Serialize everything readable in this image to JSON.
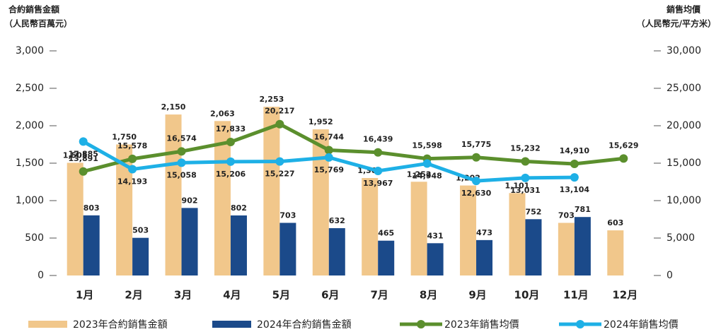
{
  "chart_data": {
    "type": "bar",
    "y_label": [
      "合約銷售金額",
      "（人民幣百萬元）"
    ],
    "y2_label": [
      "銷售均價",
      "（人民幣元/平方米）"
    ],
    "categories": [
      "1月",
      "2月",
      "3月",
      "4月",
      "5月",
      "6月",
      "7月",
      "8月",
      "9月",
      "10月",
      "11月",
      "12月"
    ],
    "ylim": [
      0,
      3000
    ],
    "yticks": [
      0,
      500,
      {
        "value": 1000,
        "label": "1,000"
      },
      {
        "value": 1500,
        "label": "1,500"
      },
      {
        "value": 2000,
        "label": "2,000"
      },
      {
        "value": 2500,
        "label": "2,500"
      },
      {
        "value": 3000,
        "label": "3,000"
      }
    ],
    "y2lim": [
      0,
      30000
    ],
    "y2ticks": [
      0,
      {
        "value": 5000,
        "label": "5,000"
      },
      {
        "value": 10000,
        "label": "10,000"
      },
      {
        "value": 15000,
        "label": "15,000"
      },
      {
        "value": 20000,
        "label": "20,000"
      },
      {
        "value": 25000,
        "label": "25,000"
      },
      {
        "value": 30000,
        "label": "30,000"
      }
    ],
    "series": [
      {
        "name": "2023年合約銷售金額",
        "type": "bar",
        "color": "#f1c78b",
        "label_color": "#c96a22",
        "values": [
          1505,
          1750,
          2150,
          2063,
          2253,
          1952,
          1302,
          1252,
          1202,
          1101,
          703,
          603
        ],
        "value_labels": [
          "1,505",
          "1,750",
          "2,150",
          "2,063",
          "2,253",
          "1,952",
          "1,302",
          "1,252",
          "1,202",
          "1,101",
          "703",
          "603"
        ]
      },
      {
        "name": "2024年合約銷售金額",
        "type": "bar",
        "color": "#1b4a8a",
        "label_color": "#1b3f78",
        "values": [
          803,
          503,
          902,
          802,
          703,
          632,
          465,
          431,
          473,
          752,
          781,
          null
        ],
        "value_labels": [
          "803",
          "503",
          "902",
          "802",
          "703",
          "632",
          "465",
          "431",
          "473",
          "752",
          "781",
          null
        ]
      },
      {
        "name": "2023年銷售均價",
        "type": "line",
        "axis": "y2",
        "color": "#5b8f2d",
        "label_color": "#4f7f25",
        "values": [
          13891,
          15578,
          16574,
          17833,
          20217,
          16744,
          16439,
          15598,
          15775,
          15232,
          14910,
          15629
        ],
        "value_labels": [
          "13,891",
          "15,578",
          "16,574",
          "17,833",
          "20,217",
          "16,744",
          "16,439",
          "15,598",
          "15,775",
          "15,232",
          "14,910",
          "15,629"
        ]
      },
      {
        "name": "2024年銷售均價",
        "type": "line",
        "axis": "y2",
        "color": "#1eb0e6",
        "label_color": "#1aa6dc",
        "values": [
          17885,
          14193,
          15058,
          15206,
          15227,
          15769,
          13967,
          14948,
          12630,
          13031,
          13104,
          null
        ],
        "value_labels": [
          "17,885",
          "14,193",
          "15,058",
          "15,206",
          "15,227",
          "15,769",
          "13,967",
          "14,948",
          "12,630",
          "13,031",
          "13,104",
          null
        ]
      }
    ]
  }
}
